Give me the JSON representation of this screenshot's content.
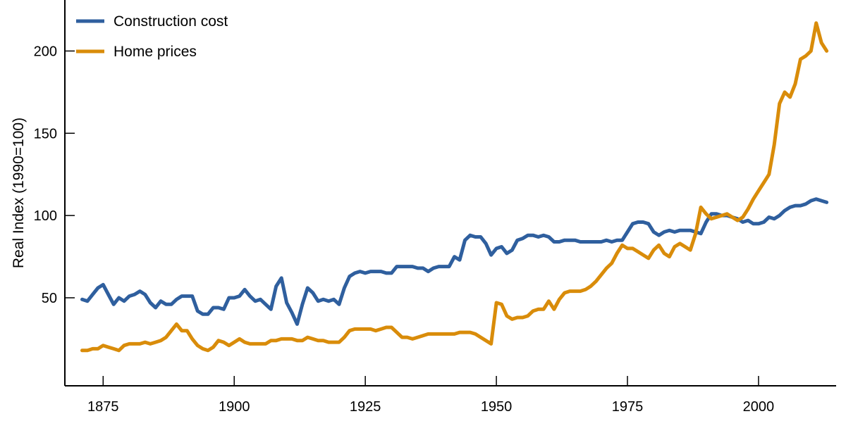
{
  "chart_data": {
    "type": "line",
    "title": "",
    "xlabel": "",
    "ylabel": "Real Index (1990=100)",
    "xlim": [
      1867.7,
      2014.8
    ],
    "ylim": [
      -3.5,
      231
    ],
    "xticks": [
      1875,
      1900,
      1925,
      1950,
      1975,
      2000
    ],
    "yticks": [
      50,
      100,
      150,
      200
    ],
    "grid": false,
    "legend_position": "top-left",
    "x_start": 1871,
    "series": [
      {
        "name": "Construction cost",
        "color": "#2f5f9e",
        "values": [
          49,
          48,
          52,
          56,
          58,
          52,
          46,
          50,
          48,
          51,
          52,
          54,
          52,
          47,
          44,
          48,
          46,
          46,
          49,
          51,
          51,
          51,
          42,
          40,
          40,
          44,
          44,
          43,
          50,
          50,
          51,
          55,
          51,
          48,
          49,
          46,
          43,
          57,
          62,
          47,
          41,
          34,
          46,
          56,
          53,
          48,
          49,
          48,
          49,
          46,
          56,
          63,
          65,
          66,
          65,
          66,
          66,
          66,
          65,
          65,
          69,
          69,
          69,
          69,
          68,
          68,
          66,
          68,
          69,
          69,
          69,
          75,
          73,
          85,
          88,
          87,
          87,
          83,
          76,
          80,
          81,
          77,
          79,
          85,
          86,
          88,
          88,
          87,
          88,
          87,
          84,
          84,
          85,
          85,
          85,
          84,
          84,
          84,
          84,
          84,
          85,
          84,
          85,
          85,
          90,
          95,
          96,
          96,
          95,
          90,
          88,
          90,
          91,
          90,
          91,
          91,
          91,
          90,
          89,
          96,
          101,
          101,
          100,
          100,
          99,
          98,
          96,
          97,
          95,
          95,
          96,
          99,
          98,
          100,
          103,
          105,
          106,
          106,
          107,
          109,
          110,
          109,
          108
        ]
      },
      {
        "name": "Home prices",
        "color": "#d98c0a",
        "values": [
          18,
          18,
          19,
          19,
          21,
          20,
          19,
          18,
          21,
          22,
          22,
          22,
          23,
          22,
          23,
          24,
          26,
          30,
          34,
          30,
          30,
          25,
          21,
          19,
          18,
          20,
          24,
          23,
          21,
          23,
          25,
          23,
          22,
          22,
          22,
          22,
          24,
          24,
          25,
          25,
          25,
          24,
          24,
          26,
          25,
          24,
          24,
          23,
          23,
          23,
          26,
          30,
          31,
          31,
          31,
          31,
          30,
          31,
          32,
          32,
          29,
          26,
          26,
          25,
          26,
          27,
          28,
          28,
          28,
          28,
          28,
          28,
          29,
          29,
          29,
          28,
          26,
          24,
          22,
          47,
          46,
          39,
          37,
          38,
          38,
          39,
          42,
          43,
          43,
          48,
          43,
          49,
          53,
          54,
          54,
          54,
          55,
          57,
          60,
          64,
          68,
          71,
          77,
          82,
          80,
          80,
          78,
          76,
          74,
          79,
          82,
          77,
          75,
          81,
          83,
          81,
          79,
          89,
          105,
          101,
          98,
          99,
          100,
          101,
          99,
          97,
          99,
          104,
          110,
          115,
          120,
          125,
          143,
          168,
          175,
          172,
          180,
          195,
          197,
          200,
          217,
          205,
          200
        ]
      }
    ]
  }
}
